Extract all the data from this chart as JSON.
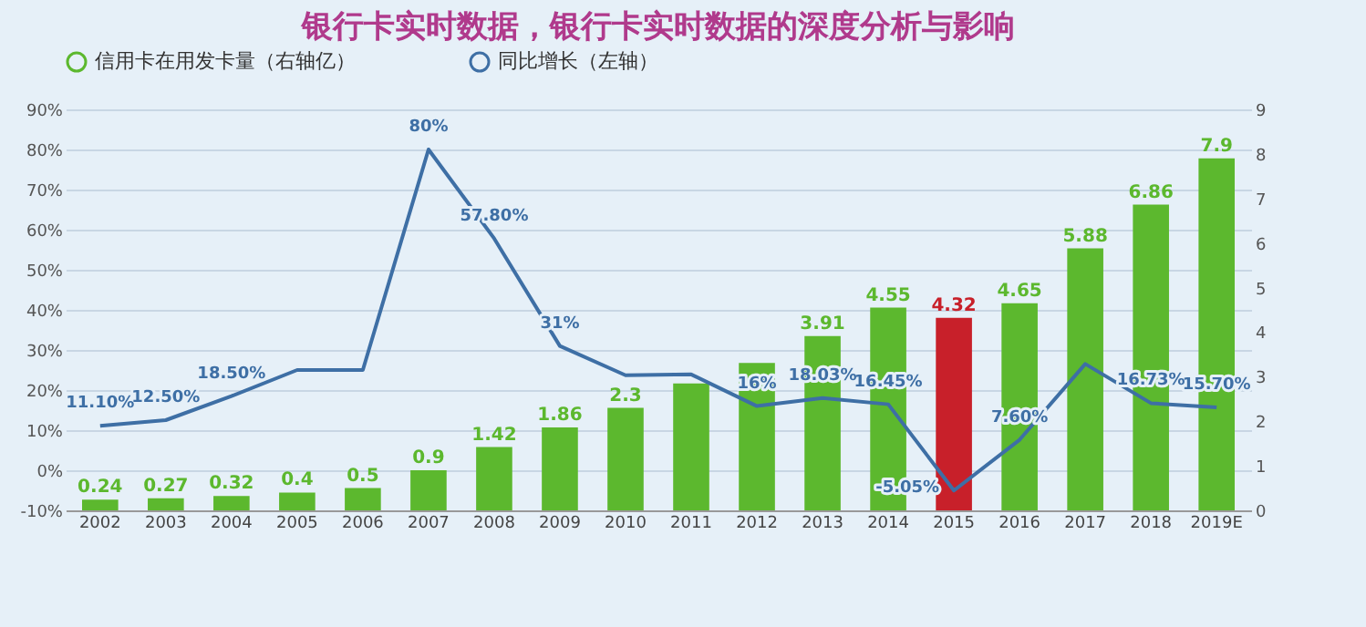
{
  "chart_data": {
    "type": "bar",
    "title": "银行卡实时数据，银行卡实时数据的深度分析与影响",
    "categories": [
      "2002",
      "2003",
      "2004",
      "2005",
      "2006",
      "2007",
      "2008",
      "2009",
      "2010",
      "2011",
      "2012",
      "2013",
      "2014",
      "2015",
      "2016",
      "2017",
      "2018",
      "2019E"
    ],
    "series": [
      {
        "name": "信用卡在用发卡量（右轴亿）",
        "axis": "y2",
        "color": "#5cb82e",
        "colors": [
          "#5cb82e",
          "#5cb82e",
          "#5cb82e",
          "#5cb82e",
          "#5cb82e",
          "#5cb82e",
          "#5cb82e",
          "#5cb82e",
          "#5cb82e",
          "#5cb82e",
          "#5cb82e",
          "#5cb82e",
          "#5cb82e",
          "#c8202a",
          "#5cb82e",
          "#5cb82e",
          "#5cb82e",
          "#5cb82e"
        ],
        "values": [
          0.24,
          0.27,
          0.32,
          0.4,
          0.5,
          0.9,
          1.42,
          1.86,
          2.3,
          2.85,
          3.31,
          3.91,
          4.55,
          4.32,
          4.65,
          5.88,
          6.86,
          7.9
        ],
        "value_labels": [
          "0.24",
          "0.27",
          "0.32",
          "0.4",
          "0.5",
          "0.9",
          "1.42",
          "1.86",
          "2.3",
          null,
          null,
          "3.91",
          "4.55",
          "4.32",
          "4.65",
          "5.88",
          "6.86",
          "7.9"
        ]
      },
      {
        "name": "同比增长（左轴）",
        "type": "line",
        "color": "#3e6fa5",
        "values": [
          11.1,
          12.5,
          18.5,
          25,
          25,
          80,
          57.8,
          31,
          23.7,
          23.9,
          16,
          18.03,
          16.45,
          -5.05,
          7.6,
          26.5,
          16.73,
          15.7
        ],
        "value_labels": [
          "11.10%",
          "12.50%",
          "18.50%",
          null,
          null,
          "80%",
          "57.80%",
          "31%",
          null,
          null,
          "16%",
          "18.03%",
          "16.45%",
          "-5.05%",
          "7.60%",
          null,
          "16.73%",
          "15.70%"
        ]
      }
    ],
    "ylim": [
      -10,
      90
    ],
    "yticks": [
      {
        "value": -10,
        "label": "-10%"
      },
      {
        "value": 0,
        "label": "0%"
      },
      {
        "value": 10,
        "label": "10%"
      },
      {
        "value": 20,
        "label": "20%"
      },
      {
        "value": 30,
        "label": "30%"
      },
      {
        "value": 40,
        "label": "40%"
      },
      {
        "value": 50,
        "label": "50%"
      },
      {
        "value": 60,
        "label": "60%"
      },
      {
        "value": 70,
        "label": "70%"
      },
      {
        "value": 80,
        "label": "80%"
      },
      {
        "value": 90,
        "label": "90%"
      }
    ],
    "y2lim": [
      0,
      9
    ],
    "y2ticks": [
      0,
      1,
      2,
      3,
      4,
      5,
      6,
      7,
      8,
      9
    ],
    "grid": "y",
    "legend": "top",
    "marker": "none",
    "line_style": "solid"
  }
}
